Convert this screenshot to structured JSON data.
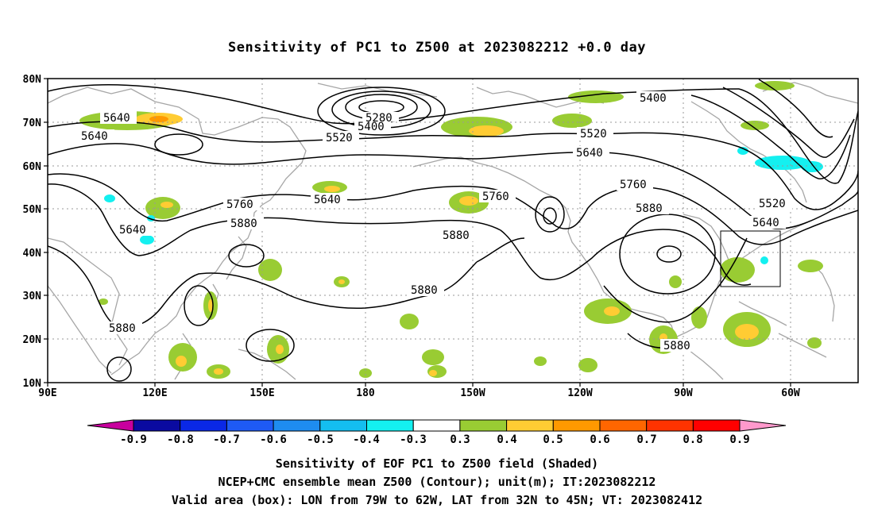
{
  "title": "Sensitivity of PC1 to Z500 at 2023082212 +0.0 day",
  "lat_labels": [
    "80N",
    "70N",
    "60N",
    "50N",
    "40N",
    "30N",
    "20N",
    "10N"
  ],
  "lon_labels": [
    "90E",
    "120E",
    "150E",
    "180",
    "150W",
    "120W",
    "90W",
    "60W"
  ],
  "contour_labels": [
    "5640",
    "5640",
    "5400",
    "5280",
    "5520",
    "5400",
    "5640",
    "5520",
    "5760",
    "5640",
    "5880",
    "5640",
    "5760",
    "5880",
    "5880",
    "5760",
    "5880",
    "5520",
    "5640",
    "5880",
    "5880"
  ],
  "colorbar": {
    "tick_labels": [
      "-0.9",
      "-0.8",
      "-0.7",
      "-0.6",
      "-0.5",
      "-0.4",
      "-0.3",
      "0.3",
      "0.4",
      "0.5",
      "0.6",
      "0.7",
      "0.8",
      "0.9"
    ],
    "colors": [
      "#c8009e",
      "#0a0aa0",
      "#0a28e6",
      "#1e5af5",
      "#1e8cf0",
      "#14bef0",
      "#14f0f0",
      "#ffffff",
      "#99cc33",
      "#ffcc33",
      "#ff9900",
      "#ff6600",
      "#ff3300",
      "#ff0000",
      "#ff99cc"
    ]
  },
  "captions": [
    "Sensitivity of EOF PC1 to Z500 field (Shaded)",
    "NCEP+CMC ensemble mean Z500 (Contour); unit(m); IT:2023082212",
    "Valid area (box): LON from 79W to 62W, LAT from 32N to 45N; VT: 2023082412"
  ],
  "colors": {
    "land": "#a6a6a6",
    "contour": "#000000",
    "grid": "#999999",
    "pos_low": "#99cc33",
    "pos_mid": "#ffcc33",
    "pos_high": "#ff9900",
    "neg": "#14f0f0"
  }
}
